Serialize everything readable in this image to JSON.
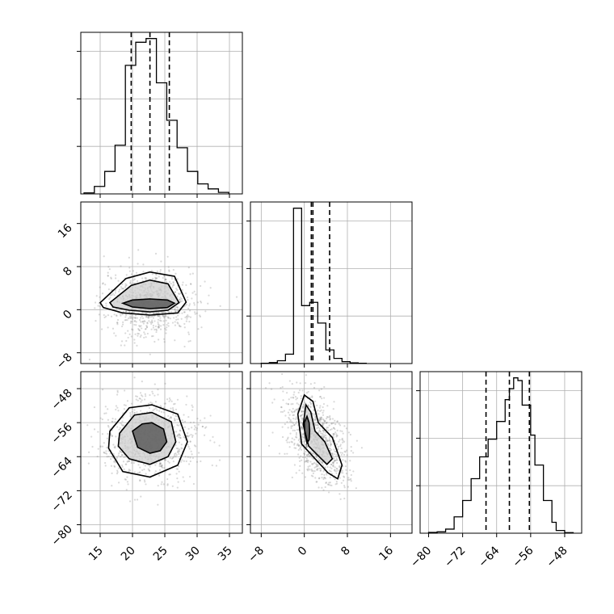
{
  "chart_data": [
    {
      "type": "histogram",
      "panel": "p1-marginal",
      "xlim": [
        12,
        37
      ],
      "xticks": [
        15,
        20,
        25,
        30,
        35
      ],
      "bins": {
        "edges": [
          12.5,
          14.1,
          15.7,
          17.3,
          18.9,
          20.5,
          22.1,
          23.7,
          25.3,
          26.9,
          28.5,
          30.1,
          31.7,
          33.3,
          34.9
        ],
        "counts": [
          8,
          60,
          180,
          390,
          1030,
          1215,
          1245,
          890,
          590,
          370,
          180,
          80,
          40,
          12
        ]
      },
      "quantiles": [
        19.8,
        22.7,
        25.7
      ]
    },
    {
      "type": "scatter_density",
      "panel": "p1-p2",
      "xlim": [
        12,
        37
      ],
      "ylim": [
        -10,
        20
      ],
      "yticks": [
        -8,
        0,
        8,
        16
      ],
      "center": [
        22.7,
        1.2
      ],
      "spread": [
        3.0,
        2.6
      ],
      "contours": [
        {
          "level": "inner",
          "x": [
            18.5,
            20.0,
            22.7,
            25.4,
            26.5,
            25.4,
            22.7,
            20.0
          ],
          "y": [
            1.2,
            1.8,
            2.0,
            1.8,
            1.2,
            0.4,
            0.2,
            0.5
          ]
        },
        {
          "level": "middle",
          "x": [
            16.5,
            19.8,
            22.7,
            25.5,
            27.2,
            25.5,
            22.7,
            19.5,
            17.0
          ],
          "y": [
            1.3,
            4.5,
            5.5,
            4.8,
            1.3,
            -0.1,
            -0.4,
            -0.1,
            0.5
          ]
        },
        {
          "level": "outer",
          "x": [
            15.0,
            19.0,
            22.7,
            26.5,
            28.3,
            27.0,
            22.7,
            18.5,
            15.5
          ],
          "y": [
            1.3,
            5.8,
            7.0,
            6.2,
            1.4,
            -0.6,
            -1.0,
            -0.6,
            0.4
          ]
        }
      ]
    },
    {
      "type": "histogram",
      "panel": "p2-marginal",
      "xlim": [
        -10,
        20
      ],
      "bins": {
        "edges": [
          -8.0,
          -6.5,
          -5.0,
          -3.5,
          -2.0,
          -0.5,
          1.0,
          2.5,
          4.0,
          5.5,
          7.0,
          8.5,
          10.0,
          11.5
        ],
        "counts": [
          5,
          20,
          60,
          200,
          3300,
          1230,
          1300,
          860,
          290,
          110,
          40,
          15,
          5
        ]
      },
      "quantiles": [
        1.3,
        1.6,
        4.7
      ]
    },
    {
      "type": "scatter_density",
      "panel": "p1-p3",
      "xlim": [
        12,
        37
      ],
      "ylim": [
        -82,
        -44
      ],
      "yticks": [
        -80,
        -72,
        -64,
        -56,
        -48
      ],
      "xticks": [
        15,
        20,
        25,
        30,
        35
      ],
      "center": [
        22.7,
        -60.0
      ],
      "spread": [
        3.2,
        4.2
      ],
      "contours": [
        {
          "level": "inner",
          "x": [
            20.0,
            21.5,
            23.0,
            24.8,
            25.3,
            24.3,
            22.7,
            20.8
          ],
          "y": [
            -58.0,
            -56.3,
            -56.0,
            -57.5,
            -60.5,
            -62.6,
            -63.2,
            -61.8
          ]
        },
        {
          "level": "middle",
          "x": [
            18.0,
            20.3,
            23.0,
            26.0,
            26.7,
            25.5,
            22.7,
            19.5,
            17.8
          ],
          "y": [
            -58.5,
            -54.2,
            -53.6,
            -55.8,
            -60.5,
            -64.0,
            -65.8,
            -64.5,
            -61.5
          ]
        },
        {
          "level": "outer",
          "x": [
            16.5,
            19.5,
            23.0,
            27.0,
            28.5,
            27.0,
            22.7,
            18.5,
            16.3
          ],
          "y": [
            -58.0,
            -52.5,
            -51.8,
            -54.0,
            -60.5,
            -66.0,
            -68.8,
            -67.5,
            -62.0
          ]
        }
      ]
    },
    {
      "type": "scatter_density",
      "panel": "p2-p3",
      "xlim": [
        -10,
        20
      ],
      "ylim": [
        -82,
        -44
      ],
      "xticks": [
        -8,
        0,
        8,
        16
      ],
      "center": [
        2.0,
        -60.0
      ],
      "spread": [
        2.5,
        4.2
      ],
      "contours": [
        {
          "level": "inner",
          "x": [
            0.5,
            0.9,
            1.0,
            0.9,
            0.5,
            0.1,
            0.0
          ],
          "y": [
            -54.5,
            -56.0,
            -58.0,
            -60.0,
            -60.8,
            -58.5,
            -56.0
          ]
        },
        {
          "level": "middle",
          "x": [
            0.3,
            1.2,
            2.0,
            3.8,
            5.2,
            4.2,
            2.6,
            0.8,
            -0.2
          ],
          "y": [
            -51.8,
            -53.5,
            -58.0,
            -60.5,
            -64.5,
            -65.8,
            -63.8,
            -61.5,
            -56.5
          ]
        },
        {
          "level": "outer",
          "x": [
            0.0,
            1.6,
            2.6,
            5.2,
            7.0,
            6.2,
            4.4,
            2.0,
            -0.5,
            -1.2
          ],
          "y": [
            -49.5,
            -51.0,
            -56.0,
            -59.5,
            -66.0,
            -69.2,
            -67.8,
            -64.5,
            -61.0,
            -54.0
          ]
        }
      ]
    },
    {
      "type": "histogram",
      "panel": "p3-marginal",
      "xlim": [
        -82,
        -44
      ],
      "xticks": [
        -80,
        -72,
        -64,
        -56,
        -48
      ],
      "bins": {
        "edges": [
          -80.0,
          -78.0,
          -76.0,
          -74.0,
          -72.0,
          -70.0,
          -68.0,
          -66.0,
          -64.0,
          -62.0,
          -61.0,
          -60.0,
          -59.0,
          -58.0,
          -56.0,
          -55.0,
          -53.0,
          -51.0,
          -50.0,
          -48.0,
          -46.0
        ],
        "counts": [
          3,
          5,
          15,
          60,
          120,
          200,
          280,
          345,
          410,
          490,
          530,
          570,
          560,
          470,
          360,
          250,
          120,
          40,
          10,
          2
        ]
      },
      "quantiles": [
        -66.5,
        -61.0,
        -56.3
      ]
    }
  ]
}
